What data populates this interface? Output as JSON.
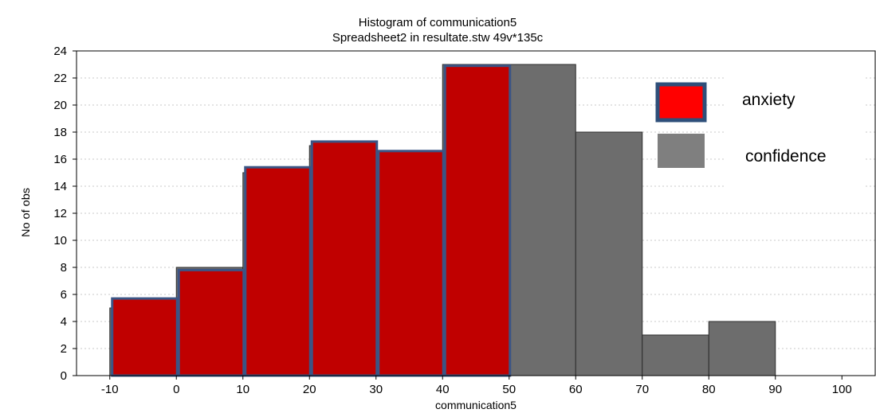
{
  "chart_data": {
    "type": "bar",
    "title": "Histogram of communication5",
    "subtitle": "Spreadsheet2 in resultate.stw 49v*135c",
    "xlabel": "communication5",
    "ylabel": "No of obs",
    "xlim": [
      -15,
      105
    ],
    "ylim": [
      0,
      24
    ],
    "x_ticks": [
      -10,
      0,
      10,
      20,
      30,
      40,
      50,
      60,
      70,
      80,
      90,
      100
    ],
    "y_ticks": [
      0,
      2,
      4,
      6,
      8,
      10,
      12,
      14,
      16,
      18,
      20,
      22,
      24
    ],
    "grid": "horizontal dashed",
    "legend_position": "top-right",
    "series": [
      {
        "name": "confidence",
        "color": "#6d6d6d",
        "bins": [
          {
            "from": -10,
            "to": 0,
            "value": 5
          },
          {
            "from": 0,
            "to": 10,
            "value": 8
          },
          {
            "from": 10,
            "to": 20,
            "value": 15
          },
          {
            "from": 20,
            "to": 30,
            "value": 17
          },
          {
            "from": 30,
            "to": 40,
            "value": 16
          },
          {
            "from": 40,
            "to": 50,
            "value": 23
          },
          {
            "from": 50,
            "to": 60,
            "value": 23
          },
          {
            "from": 60,
            "to": 70,
            "value": 18
          },
          {
            "from": 70,
            "to": 80,
            "value": 3
          },
          {
            "from": 80,
            "to": 90,
            "value": 4
          }
        ]
      },
      {
        "name": "anxiety",
        "color": "#c00000",
        "stroke": "#3b5585",
        "bins": [
          {
            "from": -10,
            "to": 0,
            "value": 5.7
          },
          {
            "from": 0,
            "to": 10,
            "value": 7.8
          },
          {
            "from": 10,
            "to": 20,
            "value": 15.4
          },
          {
            "from": 20,
            "to": 30,
            "value": 17.3
          },
          {
            "from": 30,
            "to": 40,
            "value": 16.6
          },
          {
            "from": 40,
            "to": 50,
            "value": 22.9
          }
        ]
      }
    ],
    "legend": [
      {
        "name": "anxiety",
        "color": "#ff0000",
        "stroke": "#2e4f7a"
      },
      {
        "name": "confidence",
        "color": "#7f7f7f"
      }
    ]
  }
}
